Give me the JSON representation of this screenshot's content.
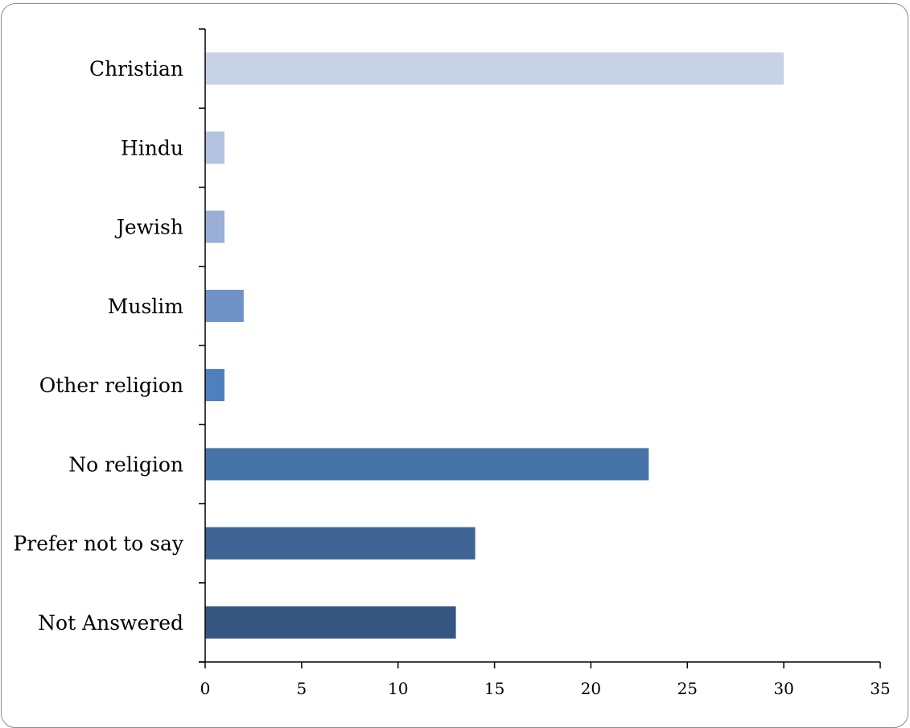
{
  "chart_data": {
    "type": "bar",
    "orientation": "horizontal",
    "title": "",
    "xlabel": "",
    "ylabel": "",
    "categories": [
      "Christian",
      "Hindu",
      "Jewish",
      "Muslim",
      "Other religion",
      "No religion",
      "Prefer not to say",
      "Not Answered"
    ],
    "values": [
      30,
      1,
      1,
      2,
      1,
      23,
      14,
      13
    ],
    "colors": [
      "#c7d2e4",
      "#b3c3e0",
      "#9aaed6",
      "#6f92c7",
      "#4f80bd",
      "#4674a8",
      "#3d6494",
      "#345681"
    ],
    "xlim": [
      0,
      35
    ],
    "xticks": [
      "0",
      "5",
      "10",
      "15",
      "20",
      "25",
      "30",
      "35"
    ],
    "grid": false,
    "legend": "none"
  }
}
